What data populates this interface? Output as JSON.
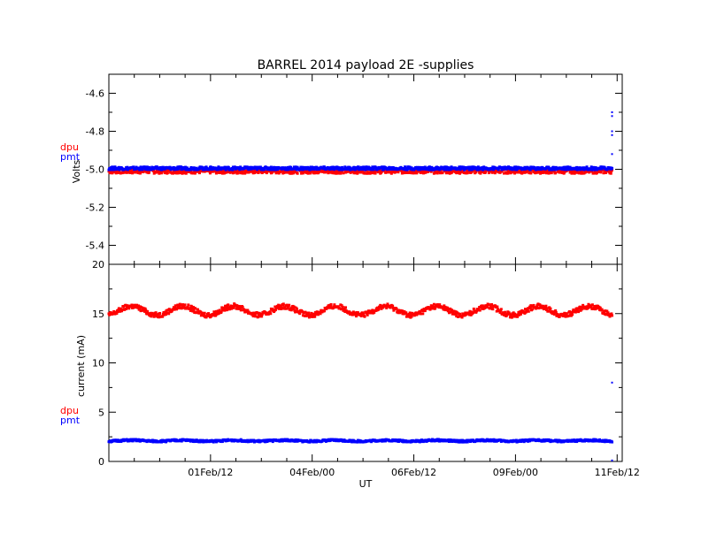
{
  "chart_data": [
    {
      "type": "scatter",
      "title": "BARREL 2014 payload 2E -supplies",
      "ylabel": "Volts",
      "xlabel": "",
      "ylim": [
        -5.5,
        -4.5
      ],
      "yticks": [
        "-4.6",
        "-4.8",
        "-5.0",
        "-5.2",
        "-5.4"
      ],
      "ytick_values": [
        -4.6,
        -4.8,
        -5.0,
        -5.2,
        -5.4
      ],
      "series": [
        {
          "name": "dpu",
          "color": "#ff0000",
          "level": -5.01,
          "spread": 0.012,
          "x_start": 0.0,
          "x_end": 9.9
        },
        {
          "name": "pmt",
          "color": "#0000ff",
          "level": -4.995,
          "spread": 0.008,
          "x_start": 0.0,
          "x_end": 9.9,
          "outliers": [
            -4.7,
            -4.72,
            -4.8,
            -4.82,
            -4.92
          ]
        }
      ]
    },
    {
      "type": "scatter",
      "title": "",
      "ylabel": "current (mA)",
      "xlabel": "UT",
      "ylim": [
        0,
        20
      ],
      "yticks": [
        "0",
        "5",
        "10",
        "15",
        "20"
      ],
      "ytick_values": [
        0,
        5,
        10,
        15,
        20
      ],
      "xticks": [
        "01Feb/12",
        "04Feb/00",
        "06Feb/12",
        "09Feb/00",
        "11Feb/12"
      ],
      "xtick_values": [
        2.0,
        4.0,
        6.0,
        8.0,
        10.0
      ],
      "xlim": [
        0.0,
        10.1
      ],
      "series": [
        {
          "name": "dpu",
          "color": "#ff0000",
          "mean": 15.3,
          "amplitude": 0.45,
          "period_days": 1.0,
          "x_start": 0.0,
          "x_end": 9.9
        },
        {
          "name": "pmt",
          "color": "#0000ff",
          "mean": 2.1,
          "amplitude": 0.05,
          "period_days": 1.0,
          "x_start": 0.0,
          "x_end": 9.9,
          "outliers": [
            8.0,
            0.1
          ]
        }
      ]
    }
  ]
}
